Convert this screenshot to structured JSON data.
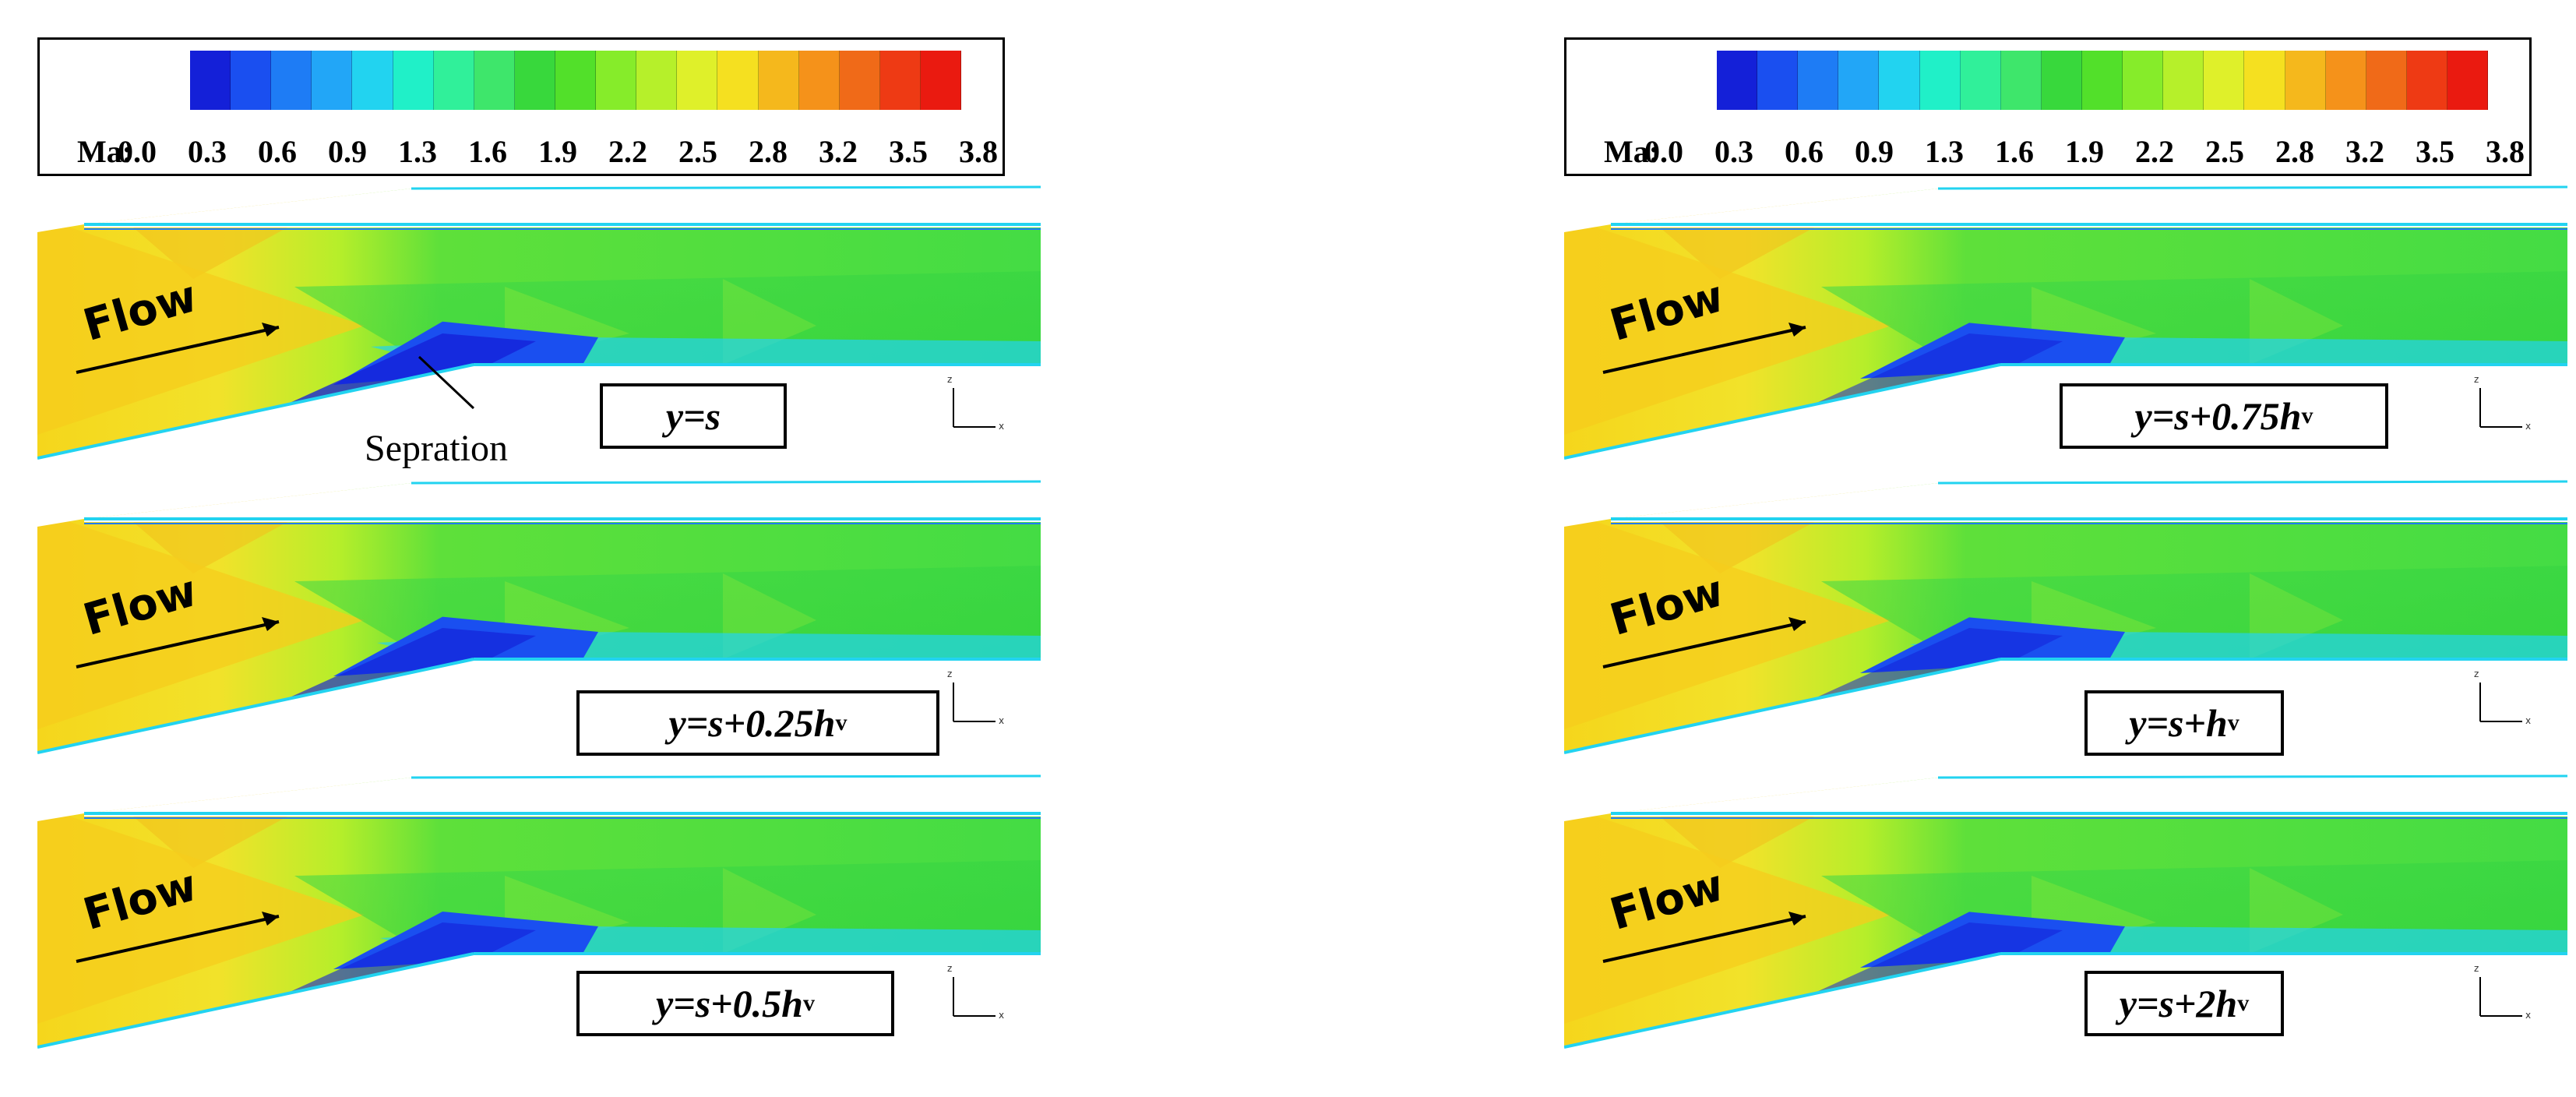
{
  "legend": {
    "label": "Ma:",
    "ticks": [
      "0.0",
      "0.3",
      "0.6",
      "0.9",
      "1.3",
      "1.6",
      "1.9",
      "2.2",
      "2.5",
      "2.8",
      "3.2",
      "3.5",
      "3.8"
    ],
    "colors": [
      "#1420d8",
      "#1a4ff0",
      "#1e7cf5",
      "#22a6f7",
      "#22d3f0",
      "#20f0c8",
      "#30f09a",
      "#3ee66b",
      "#38d83c",
      "#52e02a",
      "#86ec2a",
      "#b6f02a",
      "#dff02a",
      "#f5e020",
      "#f5b81c",
      "#f5921a",
      "#f06a18",
      "#ee3a14",
      "#ea1a10"
    ]
  },
  "flow_label": "Flow",
  "separation_label": "Sepration",
  "axis": {
    "z": "z",
    "x": "x"
  },
  "cases": [
    {
      "prefix": "y=s",
      "sub": ""
    },
    {
      "prefix": "y=s+0.25h",
      "sub": "v"
    },
    {
      "prefix": "y=s+0.5h",
      "sub": "v"
    },
    {
      "prefix": "y=s+0.75h",
      "sub": "v"
    },
    {
      "prefix": "y=s+h",
      "sub": "v"
    },
    {
      "prefix": "y=s+2h",
      "sub": "v"
    }
  ]
}
